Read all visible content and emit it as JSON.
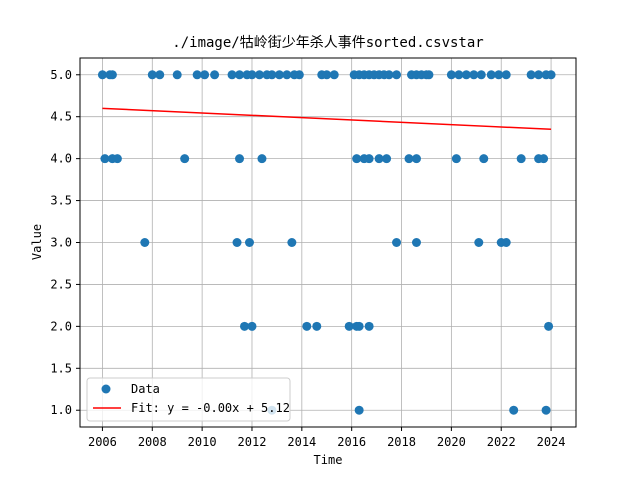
{
  "chart_data": {
    "type": "scatter",
    "title": "./image/牯岭街少年杀人事件sorted.csvstar",
    "xlabel": "Time",
    "ylabel": "Value",
    "xlim": [
      2005.1,
      2025.0
    ],
    "ylim": [
      0.8,
      5.2
    ],
    "x_ticks": [
      2006,
      2008,
      2010,
      2012,
      2014,
      2016,
      2018,
      2020,
      2022,
      2024
    ],
    "x_tick_labels": [
      "2006",
      "2008",
      "2010",
      "2012",
      "2014",
      "2016",
      "2018",
      "2020",
      "2022",
      "2024"
    ],
    "y_ticks": [
      1.0,
      1.5,
      2.0,
      2.5,
      3.0,
      3.5,
      4.0,
      4.5,
      5.0
    ],
    "y_tick_labels": [
      "1.0",
      "1.5",
      "2.0",
      "2.5",
      "3.0",
      "3.5",
      "4.0",
      "4.5",
      "5.0"
    ],
    "grid": true,
    "legend": {
      "placement": "lower-left",
      "entries": [
        {
          "label": "Data",
          "kind": "marker",
          "color": "#1f77b4"
        },
        {
          "label": "Fit: y = -0.00x + 5.12",
          "kind": "line",
          "color": "#ff0000"
        }
      ]
    },
    "series": [
      {
        "name": "Data",
        "color": "#1f77b4",
        "points": [
          [
            2006.0,
            5
          ],
          [
            2006.3,
            5
          ],
          [
            2006.4,
            5
          ],
          [
            2008.0,
            5
          ],
          [
            2008.3,
            5
          ],
          [
            2009.0,
            5
          ],
          [
            2009.8,
            5
          ],
          [
            2010.1,
            5
          ],
          [
            2010.5,
            5
          ],
          [
            2011.2,
            5
          ],
          [
            2011.5,
            5
          ],
          [
            2011.8,
            5
          ],
          [
            2012.0,
            5
          ],
          [
            2012.3,
            5
          ],
          [
            2012.6,
            5
          ],
          [
            2012.8,
            5
          ],
          [
            2013.1,
            5
          ],
          [
            2013.4,
            5
          ],
          [
            2013.7,
            5
          ],
          [
            2013.9,
            5
          ],
          [
            2014.8,
            5
          ],
          [
            2015.0,
            5
          ],
          [
            2015.3,
            5
          ],
          [
            2016.1,
            5
          ],
          [
            2016.3,
            5
          ],
          [
            2016.5,
            5
          ],
          [
            2016.7,
            5
          ],
          [
            2016.9,
            5
          ],
          [
            2017.1,
            5
          ],
          [
            2017.3,
            5
          ],
          [
            2017.5,
            5
          ],
          [
            2017.8,
            5
          ],
          [
            2018.4,
            5
          ],
          [
            2018.6,
            5
          ],
          [
            2018.8,
            5
          ],
          [
            2019.0,
            5
          ],
          [
            2019.1,
            5
          ],
          [
            2020.0,
            5
          ],
          [
            2020.3,
            5
          ],
          [
            2020.6,
            5
          ],
          [
            2020.9,
            5
          ],
          [
            2021.2,
            5
          ],
          [
            2021.6,
            5
          ],
          [
            2021.9,
            5
          ],
          [
            2022.2,
            5
          ],
          [
            2023.2,
            5
          ],
          [
            2023.5,
            5
          ],
          [
            2023.8,
            5
          ],
          [
            2024.0,
            5
          ],
          [
            2006.1,
            4
          ],
          [
            2006.4,
            4
          ],
          [
            2006.6,
            4
          ],
          [
            2009.3,
            4
          ],
          [
            2011.5,
            4
          ],
          [
            2012.4,
            4
          ],
          [
            2016.2,
            4
          ],
          [
            2016.5,
            4
          ],
          [
            2016.7,
            4
          ],
          [
            2017.1,
            4
          ],
          [
            2017.4,
            4
          ],
          [
            2018.3,
            4
          ],
          [
            2018.6,
            4
          ],
          [
            2020.2,
            4
          ],
          [
            2021.3,
            4
          ],
          [
            2022.8,
            4
          ],
          [
            2023.5,
            4
          ],
          [
            2023.7,
            4
          ],
          [
            2007.7,
            3
          ],
          [
            2011.4,
            3
          ],
          [
            2011.9,
            3
          ],
          [
            2013.6,
            3
          ],
          [
            2017.8,
            3
          ],
          [
            2018.6,
            3
          ],
          [
            2021.1,
            3
          ],
          [
            2022.0,
            3
          ],
          [
            2022.2,
            3
          ],
          [
            2011.7,
            2
          ],
          [
            2012.0,
            2
          ],
          [
            2014.2,
            2
          ],
          [
            2014.6,
            2
          ],
          [
            2015.9,
            2
          ],
          [
            2016.2,
            2
          ],
          [
            2016.3,
            2
          ],
          [
            2016.7,
            2
          ],
          [
            2023.9,
            2
          ],
          [
            2012.8,
            1
          ],
          [
            2016.3,
            1
          ],
          [
            2022.5,
            1
          ],
          [
            2023.8,
            1
          ]
        ]
      },
      {
        "name": "Fit: y = -0.00x + 5.12",
        "type": "line",
        "color": "#ff0000",
        "points": [
          [
            2006.0,
            4.6
          ],
          [
            2024.0,
            4.35
          ]
        ]
      }
    ]
  }
}
